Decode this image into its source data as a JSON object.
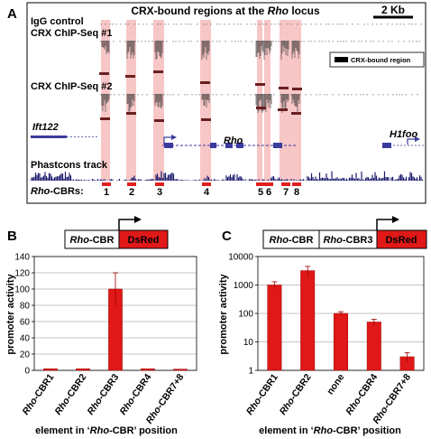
{
  "panelA": {
    "label": "A",
    "title_pre": "CRX-bound regions at the ",
    "title_gene": "Rho",
    "title_post": " locus",
    "scalebar_label": "2 Kb",
    "tracks": [
      "IgG control",
      "CRX ChIP-Seq #1",
      "CRX ChIP-Seq #2"
    ],
    "legend_label": "CRX-bound region",
    "genes": [
      "Ift122",
      "Rho",
      "H1foo"
    ],
    "phastcons_label": "Phastcons track",
    "cbr_label_gene": "Rho",
    "cbr_label_rest": "-CBRs:",
    "cbr_numbers": [
      "1",
      "2",
      "3",
      "4",
      "5",
      "6",
      "7",
      "8"
    ],
    "colors": {
      "highlight": "#f7c6c6",
      "cbr": "#e02020",
      "gene": "#3b3b9e",
      "phastcons": "#1b1b6e"
    }
  },
  "panelB": {
    "label": "B",
    "construct": {
      "box1_gene": "Rho",
      "box1_rest": "-CBR",
      "box2": "DsRed"
    },
    "chart_data": {
      "type": "bar",
      "categories": [
        "Rho-CBR1",
        "Rho-CBR2",
        "Rho-CBR3",
        "Rho-CBR4",
        "Rho-CBR7+8"
      ],
      "values": [
        2,
        2,
        100,
        2,
        1.5
      ],
      "errors": [
        0,
        0,
        20,
        0,
        0
      ],
      "ylabel": "promoter activity",
      "xlabel_pre": "element in ‘",
      "xlabel_gene": "Rho",
      "xlabel_post": "-CBR’ position",
      "ylim": [
        0,
        140
      ],
      "yticks": [
        "0",
        "20",
        "40",
        "60",
        "80",
        "100",
        "120",
        "140"
      ],
      "scale": "linear",
      "color": "#e01818"
    }
  },
  "panelC": {
    "label": "C",
    "construct": {
      "box1_gene": "Rho",
      "box1_rest": "-CBR",
      "box2_gene": "Rho",
      "box2_rest": "-CBR3",
      "box3": "DsRed"
    },
    "chart_data": {
      "type": "bar",
      "categories": [
        "Rho-CBR1",
        "Rho-CBR2",
        "none",
        "Rho-CBR4",
        "Rho-CBR7+8"
      ],
      "values": [
        1000,
        3200,
        100,
        50,
        3
      ],
      "errors_low": [
        750,
        2000,
        85,
        38,
        2
      ],
      "errors_high": [
        1300,
        4500,
        115,
        62,
        4.2
      ],
      "ylabel": "promoter activity",
      "xlabel_pre": "element in ‘",
      "xlabel_gene": "Rho",
      "xlabel_post": "-CBR’ position",
      "ylim": [
        1,
        10000
      ],
      "yticks": [
        "1",
        "10",
        "100",
        "1000",
        "10000"
      ],
      "scale": "log",
      "color": "#e01818"
    }
  }
}
